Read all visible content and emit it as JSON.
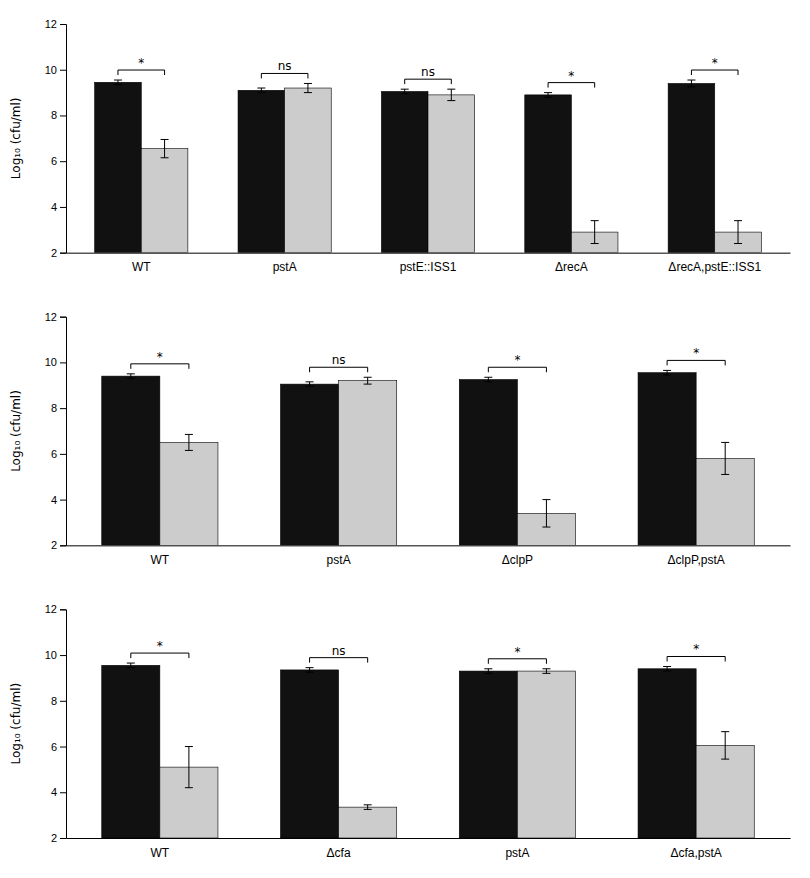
{
  "chart_data": [
    {
      "type": "bar",
      "categories": [
        "WT",
        "pstA",
        "pstE::ISS1",
        "ΔrecA",
        "ΔrecA,pstE::ISS1"
      ],
      "series": [
        {
          "color": "#111111",
          "values": [
            9.45,
            9.1,
            9.05,
            8.9,
            9.4
          ],
          "errors": [
            0.1,
            0.1,
            0.1,
            0.1,
            0.15
          ]
        },
        {
          "color": "#cccccc",
          "values": [
            6.55,
            9.2,
            8.9,
            2.9,
            2.9
          ],
          "errors": [
            0.4,
            0.2,
            0.25,
            0.5,
            0.5
          ]
        }
      ],
      "annotations": [
        "*",
        "ns",
        "ns",
        "*",
        "*"
      ],
      "y_label": "Log₁₀ (cfu/ml)",
      "ylim": [
        2,
        12
      ],
      "yticks": [
        2,
        4,
        6,
        8,
        10,
        12
      ]
    },
    {
      "type": "bar",
      "categories": [
        "WT",
        "pstA",
        "ΔclpP",
        "ΔclpP,pstA"
      ],
      "series": [
        {
          "color": "#111111",
          "values": [
            9.4,
            9.05,
            9.25,
            9.55
          ],
          "errors": [
            0.1,
            0.1,
            0.1,
            0.1
          ]
        },
        {
          "color": "#cccccc",
          "values": [
            6.5,
            9.2,
            3.4,
            5.8
          ],
          "errors": [
            0.35,
            0.15,
            0.6,
            0.7
          ]
        }
      ],
      "annotations": [
        "*",
        "ns",
        "*",
        "*"
      ],
      "y_label": "Log₁₀ (cfu/ml)",
      "ylim": [
        2,
        12
      ],
      "yticks": [
        2,
        4,
        6,
        8,
        10,
        12
      ]
    },
    {
      "type": "bar",
      "categories": [
        "WT",
        "Δcfa",
        "pstA",
        "Δcfa,pstA"
      ],
      "series": [
        {
          "color": "#111111",
          "values": [
            9.55,
            9.35,
            9.3,
            9.4
          ],
          "errors": [
            0.1,
            0.1,
            0.1,
            0.1
          ]
        },
        {
          "color": "#cccccc",
          "values": [
            5.1,
            3.35,
            9.3,
            6.05
          ],
          "errors": [
            0.9,
            0.1,
            0.1,
            0.6
          ]
        }
      ],
      "annotations": [
        "*",
        "ns",
        "*",
        "*"
      ],
      "y_label": "Log₁₀ (cfu/ml)",
      "ylim": [
        2,
        12
      ],
      "yticks": [
        2,
        4,
        6,
        8,
        10,
        12
      ]
    }
  ]
}
